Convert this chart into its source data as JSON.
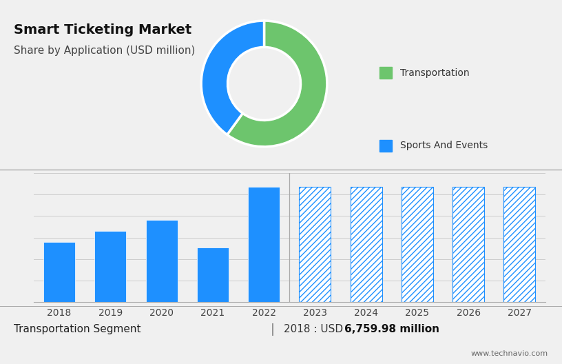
{
  "title": "Smart Ticketing Market",
  "subtitle": "Share by Application (USD million)",
  "donut_values": [
    60,
    40
  ],
  "donut_colors": [
    "#6DC56D",
    "#1E90FF"
  ],
  "legend_labels": [
    "Transportation",
    "Sports And Events"
  ],
  "legend_colors": [
    "#6DC56D",
    "#1E90FF"
  ],
  "bar_years": [
    "2018",
    "2019",
    "2020",
    "2021",
    "2022",
    "2023",
    "2024",
    "2025",
    "2026",
    "2027"
  ],
  "bar_values": [
    5.5,
    6.5,
    7.5,
    5.0,
    10.5,
    10.5,
    10.5,
    10.5,
    10.5,
    10.5
  ],
  "bar_solid": [
    true,
    true,
    true,
    true,
    true,
    false,
    false,
    false,
    false,
    false
  ],
  "bar_color_solid": "#1E90FF",
  "bar_hatch_edge": "#1E90FF",
  "footer_left": "Transportation Segment",
  "footer_right_prefix": "2018 : USD ",
  "footer_right_bold": "6,759.98 million",
  "footer_url": "www.technavio.com",
  "top_bg_color": "#C8D4E0",
  "bottom_bg_color": "#F0F0F0",
  "divider_color": "#AAAAAA",
  "title_fontsize": 14,
  "subtitle_fontsize": 11,
  "footer_fontsize": 11,
  "url_fontsize": 8
}
